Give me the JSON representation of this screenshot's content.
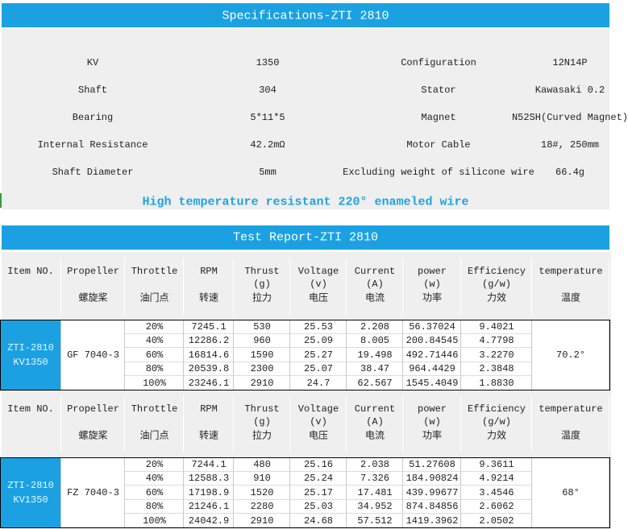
{
  "spec": {
    "title": "Specifications-ZTI 2810",
    "rows": [
      [
        "KV",
        "1350",
        "Configuration",
        "12N14P"
      ],
      [
        "Shaft",
        "304",
        "Stator",
        "Kawasaki 0.2"
      ],
      [
        "Bearing",
        "5*11*5",
        "Magnet",
        "N52SH(Curved Magnet)"
      ],
      [
        "Internal Resistance",
        "42.2mΩ",
        "Motor Cable",
        "18#, 250mm"
      ],
      [
        "Shaft Diameter",
        "5mm",
        "Excluding weight of silicone wire",
        "66.4g"
      ]
    ],
    "note": "High temperature resistant 220° enameled wire"
  },
  "report": {
    "title": "Test Report-ZTI 2810",
    "tables": [
      {
        "header": [
          [
            "Item NO."
          ],
          [
            "Propeller",
            "螺旋桨"
          ],
          [
            "Throttle",
            "油门点"
          ],
          [
            "RPM",
            "转速"
          ],
          [
            "Thrust",
            "(g)",
            "拉力"
          ],
          [
            "Voltage",
            "(v)",
            "电压"
          ],
          [
            "Current",
            "(A)",
            "电流"
          ],
          [
            "power",
            "(w)",
            "功率"
          ],
          [
            "Efficiency",
            "(g/w)",
            "力效"
          ],
          [
            "temperature",
            "温度"
          ]
        ],
        "item": [
          "ZTI-2810",
          "KV1350"
        ],
        "propeller": "GF 7040-3",
        "temperature": "70.2°",
        "rows": [
          [
            "20%",
            "7245.1",
            "530",
            "25.53",
            "2.208",
            "56.37024",
            "9.4021"
          ],
          [
            "40%",
            "12286.2",
            "960",
            "25.09",
            "8.005",
            "200.84545",
            "4.7798"
          ],
          [
            "60%",
            "16814.6",
            "1590",
            "25.27",
            "19.498",
            "492.71446",
            "3.2270"
          ],
          [
            "80%",
            "20539.8",
            "2300",
            "25.07",
            "38.47",
            "964.4429",
            "2.3848"
          ],
          [
            "100%",
            "23246.1",
            "2910",
            "24.7",
            "62.567",
            "1545.4049",
            "1.8830"
          ]
        ]
      },
      {
        "header": [
          [
            "Item NO."
          ],
          [
            "Propeller",
            "螺旋桨"
          ],
          [
            "Throttle",
            "油门点"
          ],
          [
            "RPM",
            "转速"
          ],
          [
            "Thrust",
            "(g)",
            "拉力"
          ],
          [
            "Voltage",
            "(v)",
            "电压"
          ],
          [
            "Current",
            "(A)",
            "电流"
          ],
          [
            "power",
            "(w)",
            "功率"
          ],
          [
            "Efficiency",
            "(g/w)",
            "力效"
          ],
          [
            "temperature",
            "温度"
          ]
        ],
        "item": [
          "ZTI-2810",
          "KV1350"
        ],
        "propeller": "FZ 7040-3",
        "temperature": "68°",
        "rows": [
          [
            "20%",
            "7244.1",
            "480",
            "25.16",
            "2.038",
            "51.27608",
            "9.3611"
          ],
          [
            "40%",
            "12588.3",
            "910",
            "25.24",
            "7.326",
            "184.90824",
            "4.9214"
          ],
          [
            "60%",
            "17198.9",
            "1520",
            "25.17",
            "17.481",
            "439.99677",
            "3.4546"
          ],
          [
            "80%",
            "21246.1",
            "2280",
            "25.03",
            "34.952",
            "874.84856",
            "2.6062"
          ],
          [
            "100%",
            "24042.9",
            "2910",
            "24.68",
            "57.512",
            "1419.3962",
            "2.0502"
          ]
        ]
      }
    ]
  }
}
